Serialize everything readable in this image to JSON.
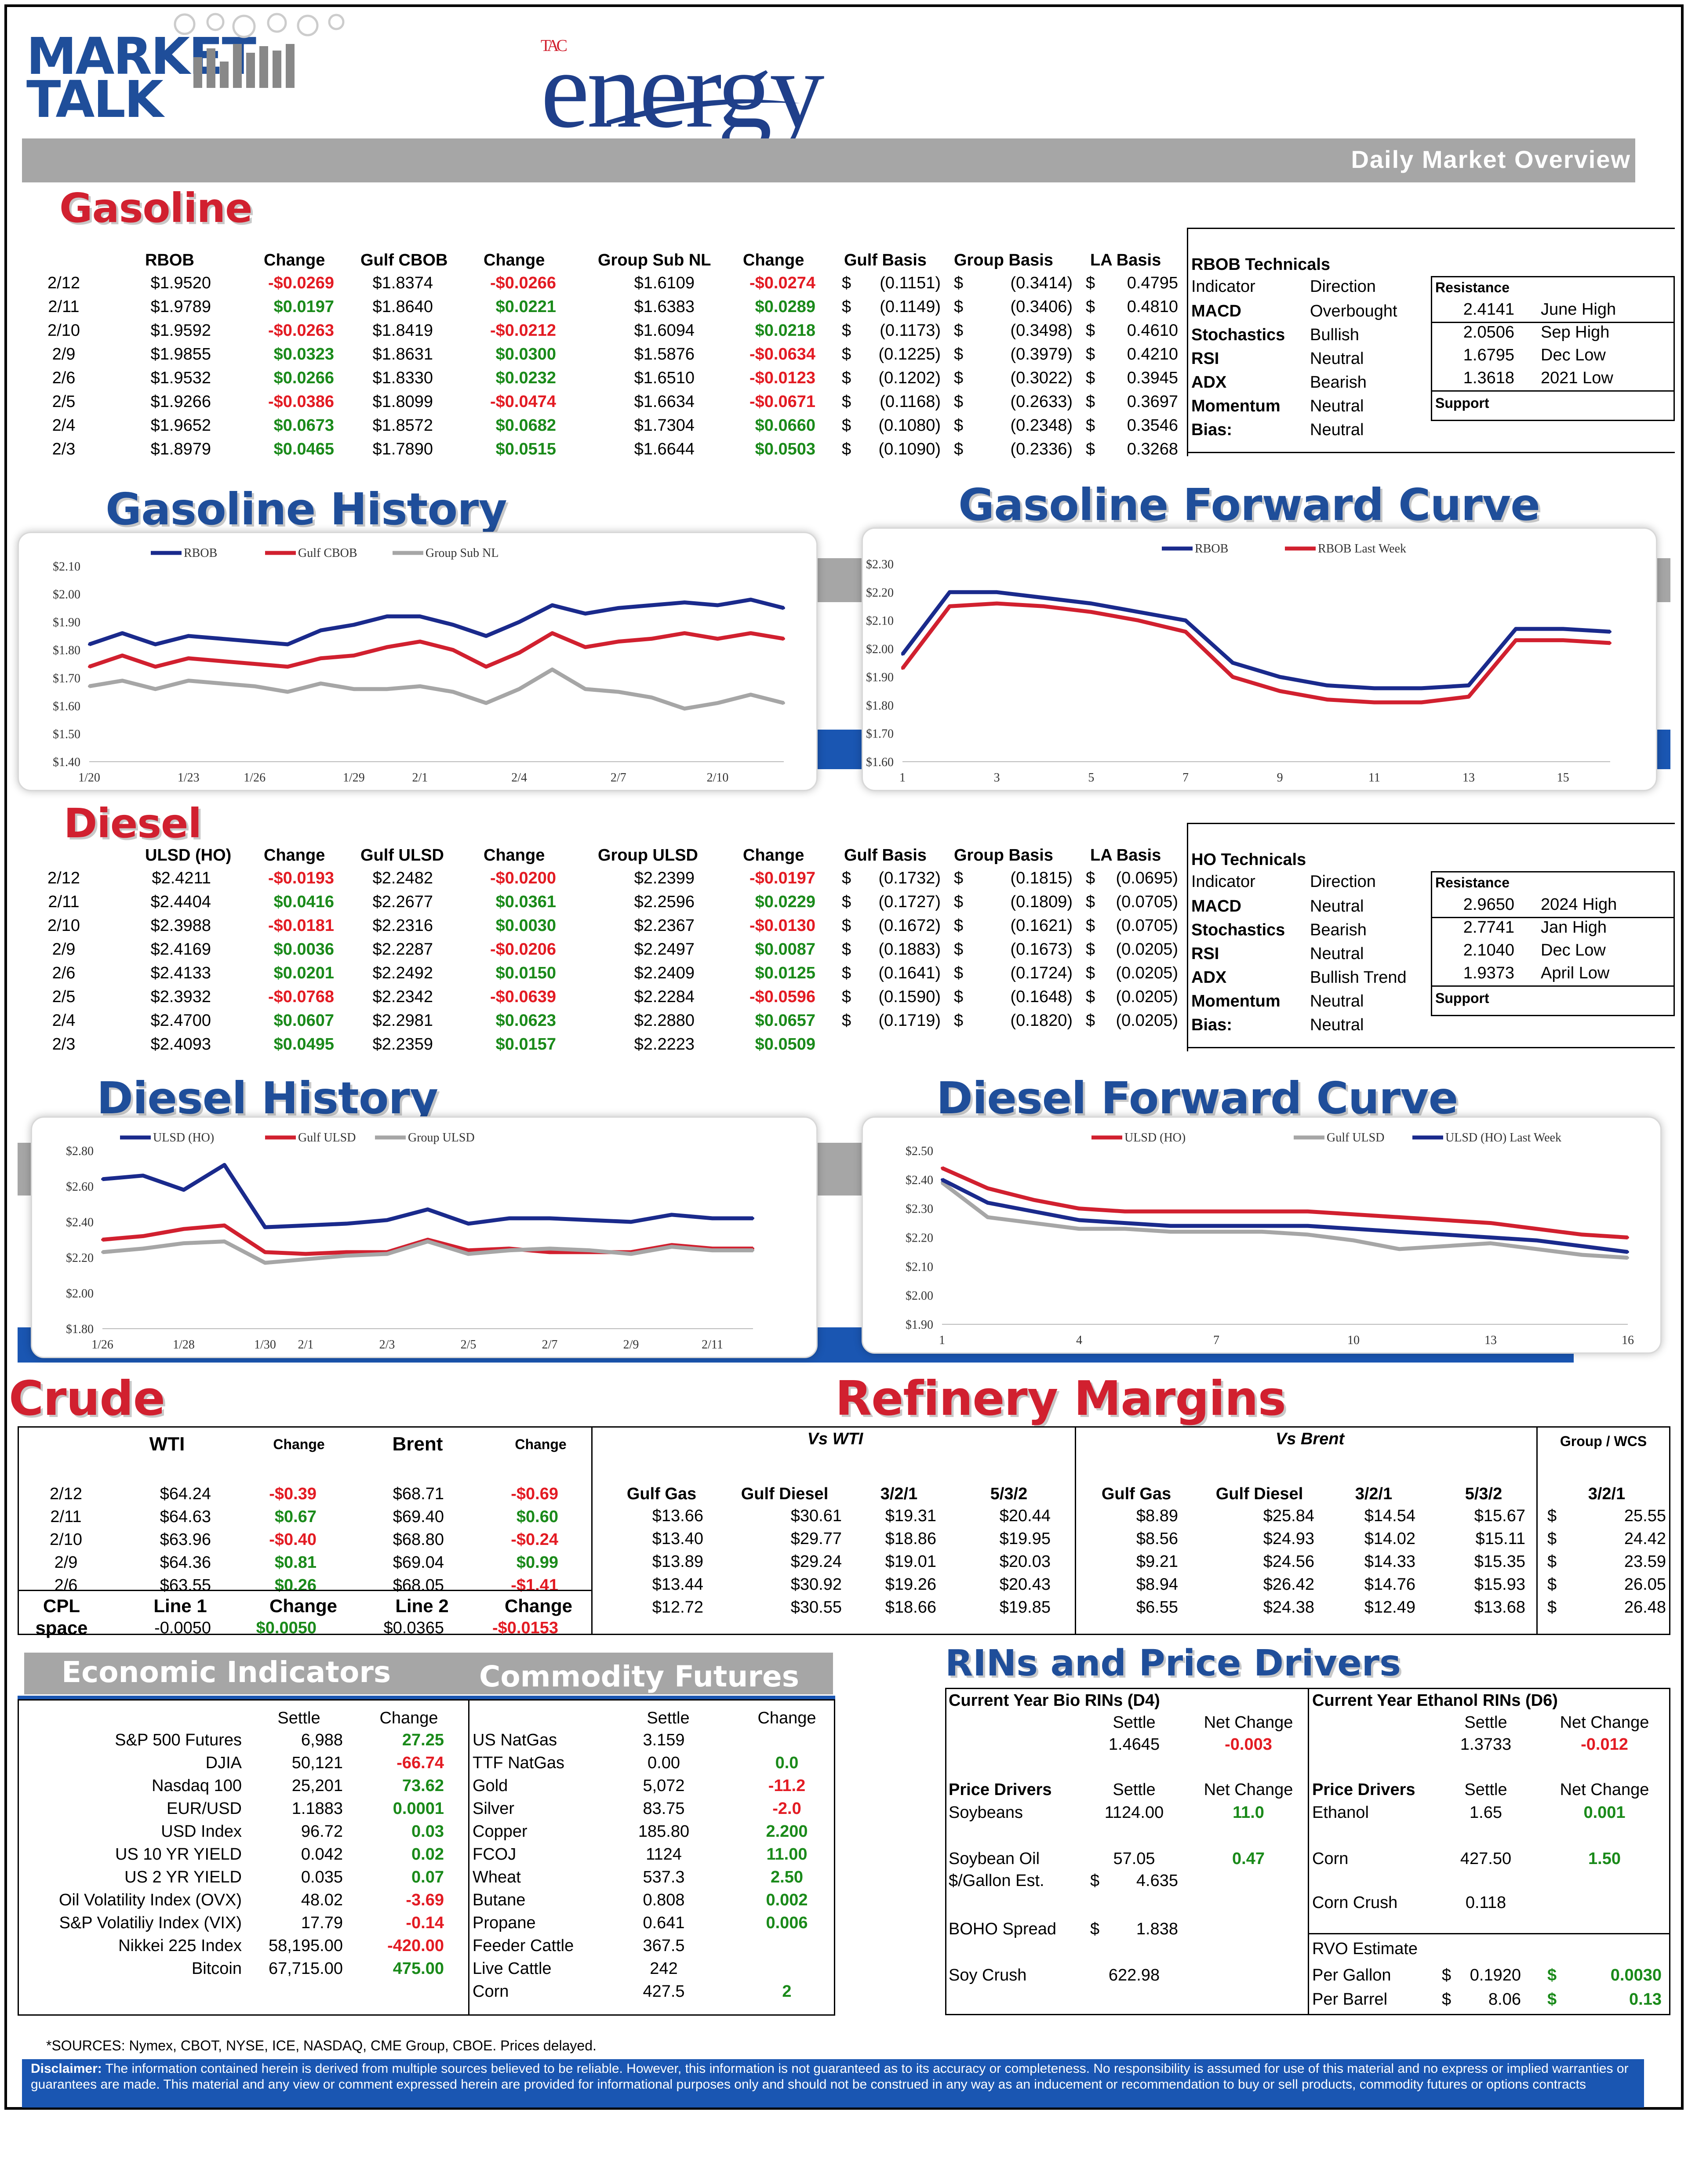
{
  "header": {
    "market_talk": "MARKET TALK",
    "brand_tac": "TAC",
    "brand_energy": "energy",
    "subtitle": "Daily Market Overview"
  },
  "gasoline": {
    "title": "Gasoline",
    "headers": [
      "RBOB",
      "Change",
      "Gulf CBOB",
      "Change",
      "Group Sub NL",
      "Change",
      "Gulf Basis",
      "Group Basis",
      "LA Basis"
    ],
    "rows": [
      [
        "2/12",
        "$1.9520",
        "-$0.0269",
        "$1.8374",
        "-$0.0266",
        "$1.6109",
        "-$0.0274",
        "(0.1151)",
        "(0.3414)",
        "0.4795"
      ],
      [
        "2/11",
        "$1.9789",
        "$0.0197",
        "$1.8640",
        "$0.0221",
        "$1.6383",
        "$0.0289",
        "(0.1149)",
        "(0.3406)",
        "0.4810"
      ],
      [
        "2/10",
        "$1.9592",
        "-$0.0263",
        "$1.8419",
        "-$0.0212",
        "$1.6094",
        "$0.0218",
        "(0.1173)",
        "(0.3498)",
        "0.4610"
      ],
      [
        "2/9",
        "$1.9855",
        "$0.0323",
        "$1.8631",
        "$0.0300",
        "$1.5876",
        "-$0.0634",
        "(0.1225)",
        "(0.3979)",
        "0.4210"
      ],
      [
        "2/6",
        "$1.9532",
        "$0.0266",
        "$1.8330",
        "$0.0232",
        "$1.6510",
        "-$0.0123",
        "(0.1202)",
        "(0.3022)",
        "0.3945"
      ],
      [
        "2/5",
        "$1.9266",
        "-$0.0386",
        "$1.8099",
        "-$0.0474",
        "$1.6634",
        "-$0.0671",
        "(0.1168)",
        "(0.2633)",
        "0.3697"
      ],
      [
        "2/4",
        "$1.9652",
        "$0.0673",
        "$1.8572",
        "$0.0682",
        "$1.7304",
        "$0.0660",
        "(0.1080)",
        "(0.2348)",
        "0.3546"
      ],
      [
        "2/3",
        "$1.8979",
        "$0.0465",
        "$1.7890",
        "$0.0515",
        "$1.6644",
        "$0.0503",
        "(0.1090)",
        "(0.2336)",
        "0.3268"
      ]
    ],
    "tech_title": "RBOB Technicals",
    "tech_headers": [
      "Indicator",
      "Direction"
    ],
    "tech_rows": [
      [
        "MACD",
        "Overbought"
      ],
      [
        "Stochastics",
        "Bullish"
      ],
      [
        "RSI",
        "Neutral"
      ],
      [
        "ADX",
        "Bearish"
      ],
      [
        "Momentum",
        "Neutral"
      ],
      [
        "Bias:",
        "Neutral"
      ]
    ],
    "resistance_label": "Resistance",
    "support_label": "Support",
    "levels": [
      [
        "2.4141",
        "June High"
      ],
      [
        "2.0506",
        "Sep High"
      ],
      [
        "1.6795",
        "Dec Low"
      ],
      [
        "1.3618",
        "2021 Low"
      ]
    ]
  },
  "diesel": {
    "title": "Diesel",
    "headers": [
      "ULSD (HO)",
      "Change",
      "Gulf ULSD",
      "Change",
      "Group ULSD",
      "Change",
      "Gulf Basis",
      "Group Basis",
      "LA Basis"
    ],
    "rows": [
      [
        "2/12",
        "$2.4211",
        "-$0.0193",
        "$2.2482",
        "-$0.0200",
        "$2.2399",
        "-$0.0197",
        "(0.1732)",
        "(0.1815)",
        "(0.0695)"
      ],
      [
        "2/11",
        "$2.4404",
        "$0.0416",
        "$2.2677",
        "$0.0361",
        "$2.2596",
        "$0.0229",
        "(0.1727)",
        "(0.1809)",
        "(0.0705)"
      ],
      [
        "2/10",
        "$2.3988",
        "-$0.0181",
        "$2.2316",
        "$0.0030",
        "$2.2367",
        "-$0.0130",
        "(0.1672)",
        "(0.1621)",
        "(0.0705)"
      ],
      [
        "2/9",
        "$2.4169",
        "$0.0036",
        "$2.2287",
        "-$0.0206",
        "$2.2497",
        "$0.0087",
        "(0.1883)",
        "(0.1673)",
        "(0.0205)"
      ],
      [
        "2/6",
        "$2.4133",
        "$0.0201",
        "$2.2492",
        "$0.0150",
        "$2.2409",
        "$0.0125",
        "(0.1641)",
        "(0.1724)",
        "(0.0205)"
      ],
      [
        "2/5",
        "$2.3932",
        "-$0.0768",
        "$2.2342",
        "-$0.0639",
        "$2.2284",
        "-$0.0596",
        "(0.1590)",
        "(0.1648)",
        "(0.0205)"
      ],
      [
        "2/4",
        "$2.4700",
        "$0.0607",
        "$2.2981",
        "$0.0623",
        "$2.2880",
        "$0.0657",
        "(0.1719)",
        "(0.1820)",
        "(0.0205)"
      ],
      [
        "2/3",
        "$2.4093",
        "$0.0495",
        "$2.2359",
        "$0.0157",
        "$2.2223",
        "$0.0509",
        "",
        "",
        ""
      ]
    ],
    "tech_title": "HO Technicals",
    "tech_headers": [
      "Indicator",
      "Direction"
    ],
    "tech_rows": [
      [
        "MACD",
        "Neutral"
      ],
      [
        "Stochastics",
        "Bearish"
      ],
      [
        "RSI",
        "Neutral"
      ],
      [
        "ADX",
        "Bullish Trend"
      ],
      [
        "Momentum",
        "Neutral"
      ],
      [
        "Bias:",
        "Neutral"
      ]
    ],
    "resistance_label": "Resistance",
    "support_label": "Support",
    "levels": [
      [
        "2.9650",
        "2024 High"
      ],
      [
        "2.7741",
        "Jan High"
      ],
      [
        "2.1040",
        "Dec Low"
      ],
      [
        "1.9373",
        "April Low"
      ]
    ]
  },
  "chart_titles": {
    "gas_hist": "Gasoline History",
    "gas_fwd": "Gasoline Forward Curve",
    "dsl_hist": "Diesel History",
    "dsl_fwd": "Diesel Forward Curve"
  },
  "chart_data": [
    {
      "type": "line",
      "id": "gas_hist",
      "x": [
        "1/20",
        "1/21",
        "1/22",
        "1/23",
        "1/24",
        "1/26",
        "1/27",
        "1/28",
        "1/29",
        "1/30",
        "2/1",
        "2/2",
        "2/3",
        "2/4",
        "2/5",
        "2/6",
        "2/7",
        "2/8",
        "2/9",
        "2/10",
        "2/11",
        "2/12"
      ],
      "xticks": [
        "1/20",
        "1/23",
        "1/26",
        "1/29",
        "2/1",
        "2/4",
        "2/7",
        "2/10"
      ],
      "ylim": [
        1.4,
        2.1
      ],
      "yticks": [
        "$2.10",
        "$2.00",
        "$1.90",
        "$1.80",
        "$1.70",
        "$1.60",
        "$1.50",
        "$1.40"
      ],
      "series": [
        {
          "name": "RBOB",
          "color": "#1a2a8c",
          "values": [
            1.82,
            1.86,
            1.82,
            1.85,
            1.84,
            1.83,
            1.82,
            1.87,
            1.89,
            1.92,
            1.92,
            1.89,
            1.85,
            1.9,
            1.96,
            1.93,
            1.95,
            1.96,
            1.97,
            1.96,
            1.98,
            1.95
          ]
        },
        {
          "name": "Gulf CBOB",
          "color": "#d1202f",
          "values": [
            1.74,
            1.78,
            1.74,
            1.77,
            1.76,
            1.75,
            1.74,
            1.77,
            1.78,
            1.81,
            1.83,
            1.8,
            1.74,
            1.79,
            1.86,
            1.81,
            1.83,
            1.84,
            1.86,
            1.84,
            1.86,
            1.84
          ]
        },
        {
          "name": "Group Sub NL",
          "color": "#a6a6a6",
          "values": [
            1.67,
            1.69,
            1.66,
            1.69,
            1.68,
            1.67,
            1.65,
            1.68,
            1.66,
            1.66,
            1.67,
            1.65,
            1.61,
            1.66,
            1.73,
            1.66,
            1.65,
            1.63,
            1.59,
            1.61,
            1.64,
            1.61
          ]
        }
      ]
    },
    {
      "type": "line",
      "id": "gas_fwd",
      "x": [
        1,
        2,
        3,
        4,
        5,
        6,
        7,
        8,
        9,
        10,
        11,
        12,
        13,
        14,
        15,
        16
      ],
      "xticks": [
        "1",
        "3",
        "5",
        "7",
        "9",
        "11",
        "13",
        "15"
      ],
      "ylim": [
        1.6,
        2.3
      ],
      "yticks": [
        "$2.30",
        "$2.20",
        "$2.10",
        "$2.00",
        "$1.90",
        "$1.80",
        "$1.70",
        "$1.60"
      ],
      "series": [
        {
          "name": "RBOB",
          "color": "#1a2a8c",
          "values": [
            1.98,
            2.2,
            2.2,
            2.18,
            2.16,
            2.13,
            2.1,
            1.95,
            1.9,
            1.87,
            1.86,
            1.86,
            1.87,
            2.07,
            2.07,
            2.06
          ]
        },
        {
          "name": "RBOB Last Week",
          "color": "#d1202f",
          "values": [
            1.93,
            2.15,
            2.16,
            2.15,
            2.13,
            2.1,
            2.06,
            1.9,
            1.85,
            1.82,
            1.81,
            1.81,
            1.83,
            2.03,
            2.03,
            2.02
          ]
        }
      ]
    },
    {
      "type": "line",
      "id": "dsl_hist",
      "x": [
        "1/26",
        "1/27",
        "1/28",
        "1/29",
        "1/30",
        "2/1",
        "2/2",
        "2/3",
        "2/4",
        "2/5",
        "2/6",
        "2/7",
        "2/8",
        "2/9",
        "2/10",
        "2/11",
        "2/12"
      ],
      "xticks": [
        "1/26",
        "1/28",
        "1/30",
        "2/1",
        "2/3",
        "2/5",
        "2/7",
        "2/9",
        "2/11"
      ],
      "ylim": [
        1.8,
        2.8
      ],
      "yticks": [
        "$2.80",
        "$2.60",
        "$2.40",
        "$2.20",
        "$2.00",
        "$1.80"
      ],
      "series": [
        {
          "name": "ULSD (HO)",
          "color": "#1a2a8c",
          "values": [
            2.64,
            2.66,
            2.58,
            2.72,
            2.37,
            2.38,
            2.39,
            2.41,
            2.47,
            2.39,
            2.42,
            2.42,
            2.41,
            2.4,
            2.44,
            2.42,
            2.42
          ]
        },
        {
          "name": "Gulf ULSD",
          "color": "#d1202f",
          "values": [
            2.3,
            2.32,
            2.36,
            2.38,
            2.23,
            2.22,
            2.23,
            2.23,
            2.3,
            2.24,
            2.25,
            2.23,
            2.23,
            2.23,
            2.27,
            2.25,
            2.25
          ]
        },
        {
          "name": "Group ULSD",
          "color": "#a6a6a6",
          "values": [
            2.23,
            2.25,
            2.28,
            2.29,
            2.17,
            2.19,
            2.21,
            2.22,
            2.29,
            2.22,
            2.24,
            2.25,
            2.24,
            2.22,
            2.26,
            2.24,
            2.24
          ]
        }
      ]
    },
    {
      "type": "line",
      "id": "dsl_fwd",
      "x": [
        1,
        2,
        3,
        4,
        5,
        6,
        7,
        8,
        9,
        10,
        11,
        12,
        13,
        14,
        15,
        16
      ],
      "xticks": [
        "1",
        "4",
        "7",
        "10",
        "13",
        "16"
      ],
      "ylim": [
        1.9,
        2.5
      ],
      "yticks": [
        "$2.50",
        "$2.40",
        "$2.30",
        "$2.20",
        "$2.10",
        "$2.00",
        "$1.90"
      ],
      "series": [
        {
          "name": "ULSD (HO)",
          "color": "#d1202f",
          "values": [
            2.44,
            2.37,
            2.33,
            2.3,
            2.29,
            2.29,
            2.29,
            2.29,
            2.29,
            2.28,
            2.27,
            2.26,
            2.25,
            2.23,
            2.21,
            2.2
          ]
        },
        {
          "name": "Gulf ULSD",
          "color": "#a6a6a6",
          "values": [
            2.39,
            2.27,
            2.25,
            2.23,
            2.23,
            2.22,
            2.22,
            2.22,
            2.21,
            2.19,
            2.16,
            2.17,
            2.18,
            2.16,
            2.14,
            2.13
          ]
        },
        {
          "name": "ULSD (HO) Last Week",
          "color": "#1a2a8c",
          "values": [
            2.4,
            2.32,
            2.29,
            2.26,
            2.25,
            2.24,
            2.24,
            2.24,
            2.24,
            2.23,
            2.22,
            2.21,
            2.2,
            2.19,
            2.17,
            2.15
          ]
        }
      ]
    }
  ],
  "crude": {
    "title": "Crude",
    "headers": [
      "WTI",
      "Change",
      "Brent",
      "Change"
    ],
    "rows": [
      [
        "2/12",
        "$64.24",
        "-$0.39",
        "$68.71",
        "-$0.69"
      ],
      [
        "2/11",
        "$64.63",
        "$0.67",
        "$69.40",
        "$0.60"
      ],
      [
        "2/10",
        "$63.96",
        "-$0.40",
        "$68.80",
        "-$0.24"
      ],
      [
        "2/9",
        "$64.36",
        "$0.81",
        "$69.04",
        "$0.99"
      ],
      [
        "2/6",
        "$63.55",
        "$0.26",
        "$68.05",
        "-$1.41"
      ]
    ],
    "cpl_label": "CPL",
    "cpl_headers": [
      "Line 1",
      "Change",
      "Line 2",
      "Change"
    ],
    "space_label": "space",
    "space_row": [
      "-0.0050",
      "$0.0050",
      "$0.0365",
      "-$0.0153"
    ]
  },
  "margins": {
    "title": "Refinery Margins",
    "vs_wti": "Vs WTI",
    "vs_brent": "Vs Brent",
    "group_wcs": "Group / WCS",
    "headers": [
      "Gulf Gas",
      "Gulf Diesel",
      "3/2/1",
      "5/3/2",
      "Gulf Gas",
      "Gulf Diesel",
      "3/2/1",
      "5/3/2",
      "3/2/1"
    ],
    "rows": [
      [
        "$13.66",
        "$30.61",
        "$19.31",
        "$20.44",
        "$8.89",
        "$25.84",
        "$14.54",
        "$15.67",
        "25.55"
      ],
      [
        "$13.40",
        "$29.77",
        "$18.86",
        "$19.95",
        "$8.56",
        "$24.93",
        "$14.02",
        "$15.11",
        "24.42"
      ],
      [
        "$13.89",
        "$29.24",
        "$19.01",
        "$20.03",
        "$9.21",
        "$24.56",
        "$14.33",
        "$15.35",
        "23.59"
      ],
      [
        "$13.44",
        "$30.92",
        "$19.26",
        "$20.43",
        "$8.94",
        "$26.42",
        "$14.76",
        "$15.93",
        "26.05"
      ],
      [
        "$12.72",
        "$30.55",
        "$18.66",
        "$19.85",
        "$6.55",
        "$24.38",
        "$12.49",
        "$13.68",
        "26.48"
      ]
    ]
  },
  "econ": {
    "title": "Economic Indicators",
    "headers": [
      "Settle",
      "Change"
    ],
    "rows": [
      [
        "S&P 500 Futures",
        "6,988",
        "27.25"
      ],
      [
        "DJIA",
        "50,121",
        "-66.74"
      ],
      [
        "Nasdaq 100",
        "25,201",
        "73.62"
      ],
      [
        "EUR/USD",
        "1.1883",
        "0.0001"
      ],
      [
        "USD Index",
        "96.72",
        "0.03"
      ],
      [
        "US 10 YR YIELD",
        "0.042",
        "0.02"
      ],
      [
        "US 2 YR YIELD",
        "0.035",
        "0.07"
      ],
      [
        "Oil Volatility Index (OVX)",
        "48.02",
        "-3.69"
      ],
      [
        "S&P Volatiliy Index (VIX)",
        "17.79",
        "-0.14"
      ],
      [
        "Nikkei 225 Index",
        "58,195.00",
        "-420.00"
      ],
      [
        "Bitcoin",
        "67,715.00",
        "475.00"
      ]
    ]
  },
  "commod": {
    "title": "Commodity Futures",
    "headers": [
      "Settle",
      "Change"
    ],
    "rows": [
      [
        "US NatGas",
        "3.159",
        ""
      ],
      [
        "TTF NatGas",
        "0.00",
        "0.0"
      ],
      [
        "Gold",
        "5,072",
        "-11.2"
      ],
      [
        "Silver",
        "83.75",
        "-2.0"
      ],
      [
        "Copper",
        "185.80",
        "2.200"
      ],
      [
        "FCOJ",
        "1124",
        "11.00"
      ],
      [
        "Wheat",
        "537.3",
        "2.50"
      ],
      [
        "Butane",
        "0.808",
        "0.002"
      ],
      [
        "Propane",
        "0.641",
        "0.006"
      ],
      [
        "Feeder Cattle",
        "367.5",
        ""
      ],
      [
        "Live Cattle",
        "242",
        ""
      ],
      [
        "Corn",
        "427.5",
        "2"
      ]
    ]
  },
  "rins": {
    "title": "RINs and Price Drivers",
    "d4_title": "Current Year Bio RINs (D4)",
    "d6_title": "Current Year Ethanol RINs (D6)",
    "settle": "Settle",
    "net_change": "Net Change",
    "d4": [
      "1.4645",
      "-0.003"
    ],
    "d6": [
      "1.3733",
      "-0.012"
    ],
    "drivers_label": "Price Drivers",
    "soybeans": [
      "Soybeans",
      "1124.00",
      "11.0"
    ],
    "soyoil": [
      "Soybean Oil",
      "57.05",
      "0.47"
    ],
    "galest": [
      "$/Gallon Est.",
      "$",
      "4.635"
    ],
    "boho": [
      "BOHO Spread",
      "$",
      "1.838"
    ],
    "soycrush": [
      "Soy Crush",
      "622.98"
    ],
    "ethanol": [
      "Ethanol",
      "1.65",
      "0.001"
    ],
    "corn": [
      "Corn",
      "427.50",
      "1.50"
    ],
    "corncrush": [
      "Corn Crush",
      "0.118"
    ],
    "rvo_title": "RVO Estimate",
    "per_gallon": [
      "Per Gallon",
      "$",
      "0.1920",
      "$",
      "0.0030"
    ],
    "per_barrel": [
      "Per Barrel",
      "$",
      "8.06",
      "$",
      "0.13"
    ]
  },
  "sources": "*SOURCES: Nymex, CBOT, NYSE, ICE, NASDAQ, CME Group, CBOE.   Prices delayed.",
  "disclaimer_label": "Disclaimer:",
  "disclaimer": "The information contained herein is derived from multiple sources believed to be reliable. However, this information is not guaranteed as to its accuracy or completeness. No responsibility is assumed for use of this material and no express or implied warranties or guarantees are made. This material and any view or comment expressed herein are provided for informational purposes only and should not be construed in any way as an inducement or recommendation to buy or sell products, commodity futures or options contracts"
}
